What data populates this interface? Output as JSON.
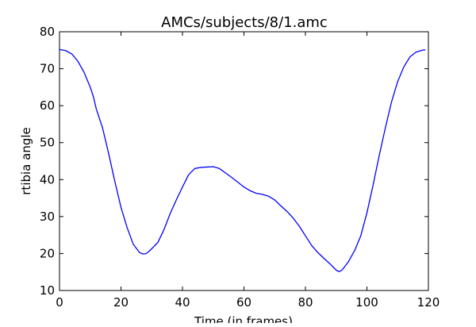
{
  "chart_data": {
    "type": "line",
    "title": "AMCs/subjects/8/1.amc",
    "xlabel": "Time (in frames)",
    "ylabel": "rtibia angle",
    "xlim": [
      0,
      120
    ],
    "ylim": [
      10,
      80
    ],
    "xticks": [
      0,
      20,
      40,
      60,
      80,
      100,
      120
    ],
    "yticks": [
      10,
      20,
      30,
      40,
      50,
      60,
      70,
      80
    ],
    "grid": false,
    "series": [
      {
        "color": "#0000ff",
        "x": [
          0,
          2,
          4,
          6,
          8,
          10,
          11,
          12,
          14,
          16,
          18,
          20,
          22,
          24,
          26,
          27,
          28,
          29,
          30,
          32,
          34,
          36,
          38,
          40,
          42,
          44,
          46,
          48,
          50,
          52,
          54,
          56,
          58,
          60,
          62,
          64,
          66,
          68,
          70,
          72,
          74,
          76,
          78,
          80,
          82,
          84,
          86,
          88,
          90,
          91,
          92,
          94,
          96,
          98,
          100,
          102,
          104,
          106,
          108,
          110,
          112,
          114,
          116,
          118,
          119
        ],
        "y": [
          75.2,
          74.9,
          74.0,
          72.0,
          69.0,
          65.0,
          62.5,
          59.0,
          54.0,
          47.0,
          39.5,
          32.5,
          27.0,
          22.5,
          20.3,
          19.9,
          19.9,
          20.5,
          21.3,
          23.0,
          26.5,
          30.8,
          34.5,
          38.0,
          41.3,
          43.0,
          43.3,
          43.4,
          43.5,
          43.0,
          41.8,
          40.6,
          39.3,
          38.0,
          37.0,
          36.3,
          36.0,
          35.5,
          34.5,
          32.9,
          31.4,
          29.6,
          27.4,
          24.8,
          22.2,
          20.3,
          18.7,
          17.2,
          15.5,
          15.1,
          15.6,
          17.8,
          20.8,
          24.8,
          31.0,
          38.5,
          46.5,
          54.0,
          61.0,
          66.5,
          70.5,
          73.2,
          74.5,
          75.0,
          75.1
        ]
      }
    ]
  }
}
